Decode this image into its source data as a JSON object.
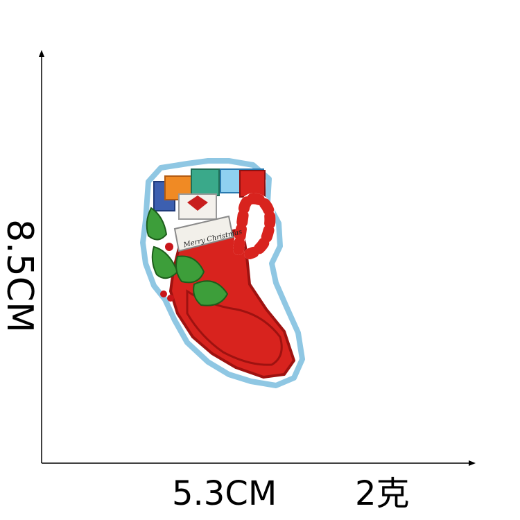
{
  "dimensions": {
    "height": "8.5CM",
    "width": "5.3CM",
    "weight": "2克"
  },
  "patch": {
    "subject": "Christmas stocking embroidered patch",
    "banner_text": "Merry Christmas",
    "colors": {
      "border": "#8fc7e3",
      "stocking": "#d8231e",
      "stocking_dark": "#9e1210",
      "holly": "#3d9e3a",
      "berry": "#c8161a",
      "banner": "#f2f0ea"
    }
  }
}
